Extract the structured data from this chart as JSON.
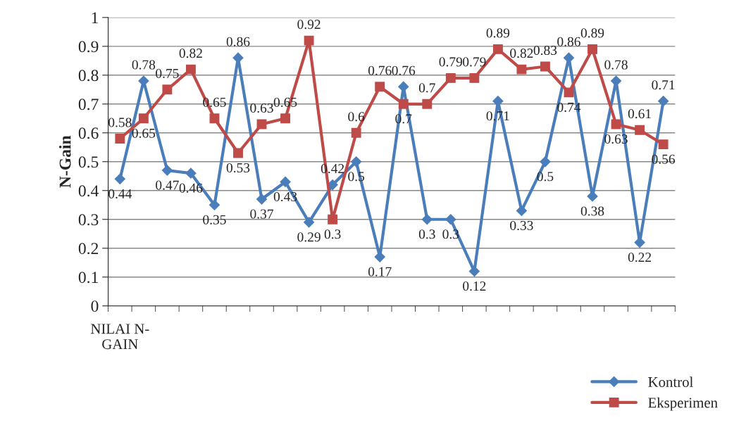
{
  "chart_data": {
    "type": "line",
    "ylabel": "N-Gain",
    "categories": [
      "NILAI N-GAIN",
      null,
      null,
      null,
      null,
      null,
      null,
      null,
      null,
      null,
      null,
      null,
      null,
      null,
      null,
      null,
      null,
      null,
      null,
      null,
      null,
      null,
      null,
      null
    ],
    "series": [
      {
        "name": "Kontrol",
        "color": "#4a7ebb",
        "marker": "diamond",
        "values": [
          0.44,
          0.78,
          0.47,
          0.46,
          0.35,
          0.86,
          0.37,
          0.43,
          0.29,
          0.42,
          0.5,
          0.17,
          0.76,
          0.3,
          0.3,
          0.12,
          0.71,
          0.33,
          0.5,
          0.86,
          0.38,
          0.78,
          0.22,
          0.71
        ]
      },
      {
        "name": "Eksperimen",
        "color": "#be4b48",
        "marker": "square",
        "values": [
          0.58,
          0.65,
          0.75,
          0.82,
          0.65,
          0.53,
          0.63,
          0.65,
          0.92,
          0.3,
          0.6,
          0.76,
          0.7,
          0.7,
          0.79,
          0.79,
          0.89,
          0.82,
          0.83,
          0.74,
          0.89,
          0.63,
          0.61,
          0.56
        ]
      }
    ],
    "ylim": [
      0,
      1
    ],
    "yticks": [
      0,
      0.1,
      0.2,
      0.3,
      0.4,
      0.5,
      0.6,
      0.7,
      0.8,
      0.9,
      1
    ],
    "grid": "y",
    "legend": "bottom right",
    "data_labels": true
  }
}
